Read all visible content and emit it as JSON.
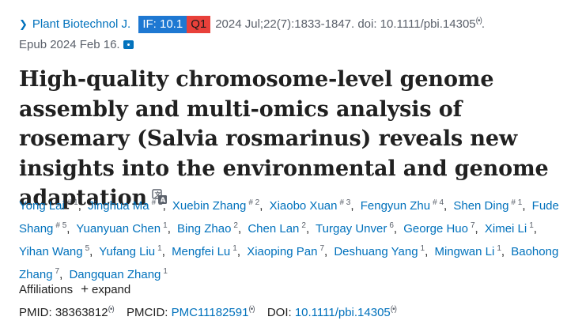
{
  "citation": {
    "journal": "Plant Biotechnol J.",
    "if_badge": "IF: 10.1",
    "quartile_badge": "Q1",
    "details": "2024 Jul;22(7):1833-1847. doi: 10.1111/pbi.14305",
    "epub": "Epub 2024 Feb 16."
  },
  "title": "High-quality chromosome-level genome assembly and multi-omics analysis of rosemary (Salvia rosmarinus) reveals new insights into the environmental and genome adaptation",
  "authors": [
    {
      "name": "Yong Lai",
      "sup": "# 1"
    },
    {
      "name": "Jinghua Ma",
      "sup": "# 1"
    },
    {
      "name": "Xuebin Zhang",
      "sup": "# 2"
    },
    {
      "name": "Xiaobo Xuan",
      "sup": "# 3"
    },
    {
      "name": "Fengyun Zhu",
      "sup": "# 4"
    },
    {
      "name": "Shen Ding",
      "sup": "# 1"
    },
    {
      "name": "Fude Shang",
      "sup": "# 5"
    },
    {
      "name": "Yuanyuan Chen",
      "sup": "1"
    },
    {
      "name": "Bing Zhao",
      "sup": "2"
    },
    {
      "name": "Chen Lan",
      "sup": "2"
    },
    {
      "name": "Turgay Unver",
      "sup": "6"
    },
    {
      "name": "George Huo",
      "sup": "7"
    },
    {
      "name": "Ximei Li",
      "sup": "1"
    },
    {
      "name": "Yihan Wang",
      "sup": "5"
    },
    {
      "name": "Yufang Liu",
      "sup": "1"
    },
    {
      "name": "Mengfei Lu",
      "sup": "1"
    },
    {
      "name": "Xiaoping Pan",
      "sup": "7"
    },
    {
      "name": "Deshuang Yang",
      "sup": "1"
    },
    {
      "name": "Mingwan Li",
      "sup": "1"
    },
    {
      "name": "Baohong Zhang",
      "sup": "7"
    },
    {
      "name": "Dangquan Zhang",
      "sup": "1"
    }
  ],
  "affiliations": {
    "label": "Affiliations",
    "expand": "expand"
  },
  "ids": {
    "pmid_label": "PMID:",
    "pmid": "38363812",
    "pmcid_label": "PMCID:",
    "pmcid": "PMC11182591",
    "doi_label": "DOI:",
    "doi": "10.1111/pbi.14305"
  },
  "icons": {
    "journal_chevron": "chevron-right-icon",
    "copy": "copy-icon",
    "camera": "camera-icon",
    "translate": "translate-icon"
  },
  "colors": {
    "link": "#0071bc",
    "if_badge_bg": "#1e78d2",
    "q_badge_bg": "#e8403a"
  }
}
